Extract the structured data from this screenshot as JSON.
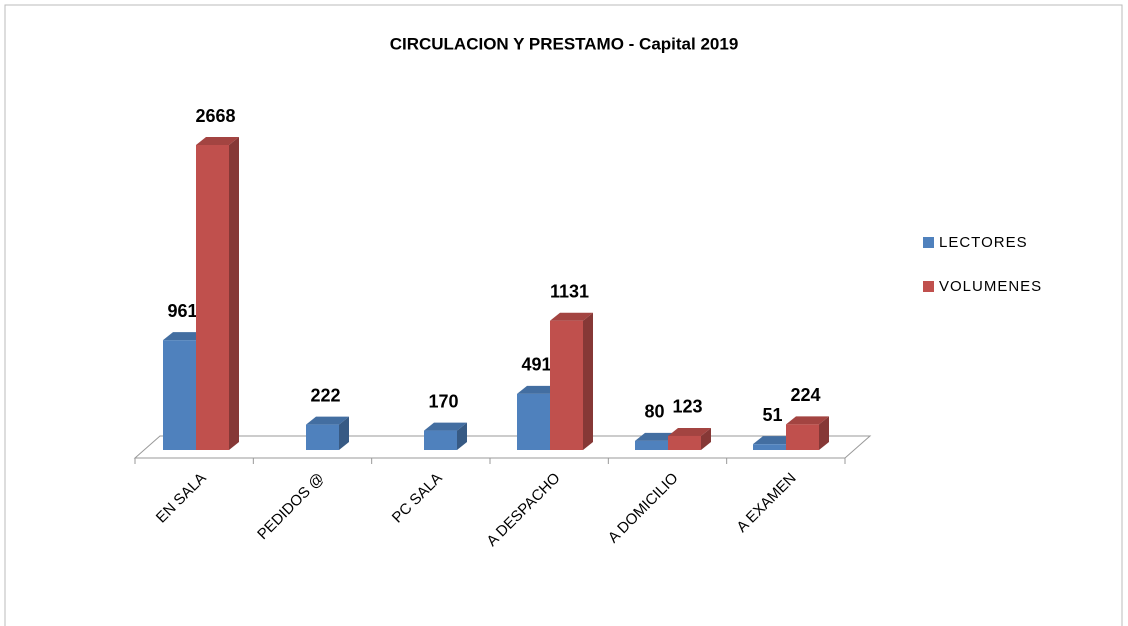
{
  "chart_data": {
    "type": "bar3d",
    "title": "CIRCULACION Y PRESTAMO - Capital 2019",
    "categories": [
      "EN SALA",
      "PEDIDOS @",
      "PC SALA",
      "A DESPACHO",
      "A DOMICILIO",
      "A EXAMEN"
    ],
    "series": [
      {
        "name": "LECTORES",
        "color": "#4f81bd",
        "values": [
          961,
          222,
          170,
          491,
          80,
          51
        ]
      },
      {
        "name": "VOLUMENES",
        "color": "#c0504d",
        "values": [
          2668,
          null,
          null,
          1131,
          123,
          224
        ]
      }
    ],
    "legend": "right"
  }
}
